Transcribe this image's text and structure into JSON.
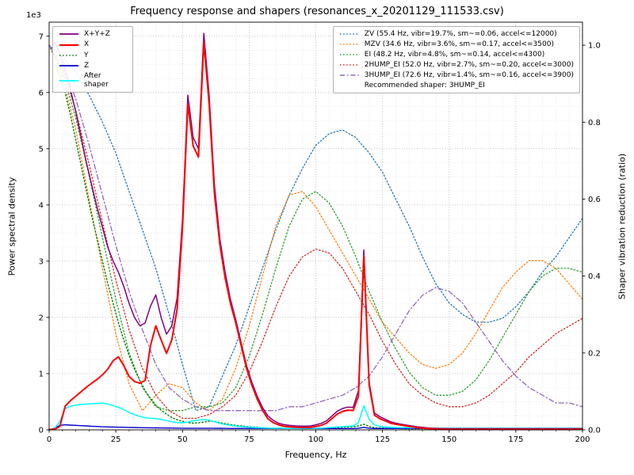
{
  "chart_data": {
    "type": "line",
    "title": "Frequency response and shapers (resonances_x_20201129_111533.csv)",
    "xlabel": "Frequency, Hz",
    "ylabel_left": "Power spectral density",
    "ylabel_right": "Shaper vibration reduction (ratio)",
    "offset_label": "1e3",
    "x_axis": {
      "min": 0,
      "max": 200,
      "major_ticks": [
        0,
        25,
        50,
        75,
        100,
        125,
        150,
        175,
        200
      ],
      "minor_step": 5
    },
    "y_left": {
      "min": 0,
      "max": 7250,
      "scale": 1000,
      "ticks": [
        0,
        1,
        2,
        3,
        4,
        5,
        6,
        7
      ],
      "minor_step": 250
    },
    "y_right": {
      "min": 0,
      "max": 1.06,
      "ticks": [
        0.0,
        0.2,
        0.4,
        0.6,
        0.8,
        1.0
      ]
    },
    "grid": true,
    "series": [
      {
        "name": "ZV",
        "axis": "right",
        "color": "#1f77b4",
        "style": "dotted",
        "width": 1.3,
        "x0": 0,
        "dx": 5,
        "values": [
          1.0,
          0.97,
          0.93,
          0.87,
          0.8,
          0.72,
          0.62,
          0.52,
          0.42,
          0.3,
          0.17,
          0.05,
          0.06,
          0.14,
          0.22,
          0.32,
          0.42,
          0.52,
          0.61,
          0.68,
          0.74,
          0.77,
          0.78,
          0.76,
          0.72,
          0.67,
          0.6,
          0.53,
          0.45,
          0.38,
          0.33,
          0.3,
          0.28,
          0.28,
          0.29,
          0.32,
          0.36,
          0.41,
          0.45,
          0.5,
          0.55
        ]
      },
      {
        "name": "MZV",
        "axis": "right",
        "color": "#ff7f0e",
        "style": "dotted",
        "width": 1.3,
        "x0": 0,
        "dx": 5,
        "values": [
          1.0,
          0.92,
          0.78,
          0.6,
          0.42,
          0.25,
          0.12,
          0.05,
          0.09,
          0.12,
          0.11,
          0.07,
          0.05,
          0.08,
          0.16,
          0.27,
          0.4,
          0.53,
          0.61,
          0.62,
          0.58,
          0.52,
          0.46,
          0.4,
          0.34,
          0.28,
          0.24,
          0.2,
          0.17,
          0.16,
          0.17,
          0.2,
          0.25,
          0.31,
          0.37,
          0.41,
          0.44,
          0.44,
          0.42,
          0.38,
          0.34
        ]
      },
      {
        "name": "EI",
        "axis": "right",
        "color": "#2ca02c",
        "style": "dotted",
        "width": 1.3,
        "x0": 0,
        "dx": 5,
        "values": [
          1.0,
          0.93,
          0.81,
          0.66,
          0.5,
          0.34,
          0.2,
          0.11,
          0.06,
          0.05,
          0.05,
          0.06,
          0.06,
          0.07,
          0.11,
          0.19,
          0.3,
          0.42,
          0.53,
          0.6,
          0.62,
          0.59,
          0.53,
          0.45,
          0.36,
          0.28,
          0.21,
          0.15,
          0.11,
          0.09,
          0.09,
          0.1,
          0.13,
          0.18,
          0.24,
          0.3,
          0.36,
          0.4,
          0.42,
          0.42,
          0.41
        ]
      },
      {
        "name": "2HUMP_EI",
        "axis": "right",
        "color": "#d62728",
        "style": "dotted",
        "width": 1.3,
        "x0": 0,
        "dx": 5,
        "values": [
          1.0,
          0.94,
          0.83,
          0.69,
          0.54,
          0.39,
          0.26,
          0.16,
          0.09,
          0.05,
          0.03,
          0.03,
          0.04,
          0.06,
          0.09,
          0.15,
          0.23,
          0.32,
          0.4,
          0.45,
          0.47,
          0.46,
          0.42,
          0.36,
          0.3,
          0.23,
          0.17,
          0.12,
          0.09,
          0.07,
          0.06,
          0.06,
          0.07,
          0.09,
          0.12,
          0.15,
          0.19,
          0.22,
          0.25,
          0.27,
          0.29
        ]
      },
      {
        "name": "3HUMP_EI",
        "axis": "right",
        "color": "#9467bd",
        "style": "dashdot",
        "width": 1.3,
        "x0": 0,
        "dx": 5,
        "values": [
          1.0,
          0.95,
          0.86,
          0.74,
          0.61,
          0.48,
          0.36,
          0.26,
          0.17,
          0.11,
          0.08,
          0.06,
          0.05,
          0.05,
          0.05,
          0.05,
          0.05,
          0.05,
          0.06,
          0.06,
          0.07,
          0.08,
          0.09,
          0.11,
          0.14,
          0.19,
          0.25,
          0.31,
          0.35,
          0.37,
          0.36,
          0.33,
          0.28,
          0.23,
          0.18,
          0.14,
          0.11,
          0.09,
          0.07,
          0.07,
          0.06
        ]
      },
      {
        "name": "Y",
        "axis": "left",
        "color": "#008000",
        "style": "dotted",
        "width": 1.4,
        "x0": 2,
        "dx": 2,
        "values": [
          6500,
          6300,
          6000,
          5600,
          5150,
          4700,
          4250,
          3800,
          3400,
          3000,
          2600,
          2250,
          1900,
          1600,
          1320,
          1080,
          880,
          700,
          560,
          440,
          350,
          280,
          220,
          180,
          150,
          130,
          120,
          125,
          140,
          155,
          150,
          130,
          110,
          95,
          80,
          70,
          60,
          52,
          46,
          40,
          35,
          30,
          28,
          26,
          24,
          22,
          22,
          22,
          24,
          26,
          30,
          34,
          38,
          42,
          46,
          50,
          55,
          70,
          100,
          60,
          40,
          34,
          30,
          26,
          24,
          22,
          20,
          20,
          18,
          18,
          16,
          16,
          14,
          14,
          12,
          12,
          12,
          12,
          12,
          12,
          12,
          12,
          12,
          12,
          12,
          12,
          12,
          12,
          12,
          12,
          12,
          12,
          12,
          12,
          12,
          12,
          12,
          12,
          12,
          12
        ]
      },
      {
        "name": "Z",
        "axis": "left",
        "color": "#0000cd",
        "style": "solid",
        "width": 1.4,
        "x0": 0,
        "dx": 2,
        "values": [
          0,
          30,
          80,
          90,
          85,
          80,
          75,
          70,
          65,
          60,
          55,
          52,
          50,
          48,
          46,
          44,
          42,
          40,
          38,
          36,
          35,
          34,
          33,
          32,
          31,
          30,
          30,
          30,
          30,
          30,
          30,
          29,
          28,
          27,
          26,
          25,
          25,
          25,
          25,
          25,
          25,
          24,
          24,
          24,
          24,
          24,
          24,
          24,
          24,
          24,
          24,
          24,
          24,
          24,
          24,
          24,
          24,
          24,
          30,
          45,
          30,
          24,
          24,
          24,
          24,
          24,
          24,
          24,
          24,
          24,
          24,
          24,
          24,
          24,
          24,
          24,
          24,
          24,
          24,
          24,
          24,
          24,
          24,
          24,
          24,
          24,
          24,
          24,
          24,
          24,
          24,
          24,
          24,
          24,
          24,
          24,
          24,
          24,
          24,
          24,
          24
        ]
      },
      {
        "name": "After shaper",
        "axis": "left",
        "color": "#00ffff",
        "style": "solid",
        "width": 1.5,
        "x0": 0,
        "dx": 2,
        "values": [
          0,
          20,
          150,
          380,
          420,
          440,
          450,
          460,
          465,
          470,
          475,
          460,
          430,
          400,
          360,
          310,
          270,
          240,
          215,
          205,
          200,
          185,
          165,
          145,
          130,
          125,
          140,
          160,
          175,
          185,
          170,
          145,
          115,
          95,
          80,
          68,
          58,
          50,
          44,
          40,
          36,
          33,
          30,
          29,
          28,
          27,
          27,
          27,
          28,
          29,
          30,
          33,
          37,
          43,
          50,
          58,
          65,
          70,
          130,
          430,
          190,
          90,
          60,
          50,
          45,
          42,
          40,
          38,
          36,
          35,
          34,
          33,
          32,
          31,
          30,
          30,
          30,
          30,
          30,
          30,
          30,
          30,
          30,
          30,
          30,
          30,
          30,
          30,
          30,
          30,
          30,
          30,
          30,
          30,
          30,
          30,
          30,
          30,
          30,
          30,
          30
        ]
      },
      {
        "name": "X+Y+Z",
        "axis": "left",
        "color": "#800080",
        "style": "solid",
        "width": 1.5,
        "x0": 2,
        "dx": 2,
        "values": [
          6900,
          6700,
          6400,
          6050,
          5650,
          5200,
          4750,
          4350,
          3950,
          3600,
          3250,
          3000,
          2800,
          2550,
          2250,
          2000,
          1850,
          1900,
          2200,
          2400,
          2000,
          1700,
          1850,
          2350,
          3750,
          5950,
          5200,
          5000,
          7050,
          5950,
          4350,
          3400,
          2800,
          2320,
          1960,
          1550,
          1150,
          850,
          600,
          400,
          250,
          170,
          120,
          95,
          80,
          72,
          68,
          66,
          70,
          90,
          115,
          160,
          245,
          330,
          380,
          405,
          400,
          700,
          3200,
          850,
          300,
          235,
          190,
          145,
          120,
          100,
          85,
          70,
          55,
          45,
          35,
          30,
          26,
          24,
          22,
          22,
          22,
          22,
          22,
          22,
          22,
          22,
          22,
          22,
          22,
          22,
          22,
          22,
          22,
          22,
          22,
          22,
          22,
          22,
          22,
          22,
          22,
          22,
          22,
          22
        ]
      },
      {
        "name": "X",
        "axis": "left",
        "color": "#ff0000",
        "style": "solid",
        "width": 2.0,
        "x0": 0,
        "dx": 2,
        "values": [
          5,
          10,
          60,
          420,
          520,
          600,
          680,
          760,
          830,
          900,
          980,
          1080,
          1230,
          1300,
          1140,
          950,
          860,
          830,
          880,
          1500,
          1850,
          1600,
          1360,
          1600,
          2150,
          3600,
          5800,
          5050,
          4850,
          6900,
          5800,
          4200,
          3300,
          2700,
          2250,
          1900,
          1500,
          1100,
          800,
          550,
          350,
          200,
          130,
          90,
          65,
          55,
          48,
          44,
          42,
          45,
          60,
          80,
          120,
          200,
          280,
          330,
          350,
          345,
          600,
          3100,
          800,
          260,
          200,
          160,
          120,
          100,
          85,
          70,
          55,
          40,
          30,
          22,
          18,
          15,
          12,
          10,
          10,
          10,
          10,
          10,
          10,
          10,
          10,
          10,
          10,
          10,
          10,
          10,
          10,
          10,
          10,
          10,
          10,
          10,
          10,
          10,
          10,
          10,
          10,
          10,
          10
        ]
      }
    ],
    "legend_left": {
      "items": [
        {
          "label": "X+Y+Z",
          "color": "#800080",
          "style": "solid",
          "width": 1.8
        },
        {
          "label": "X",
          "color": "#ff0000",
          "style": "solid",
          "width": 2.2
        },
        {
          "label": "Y",
          "color": "#008000",
          "style": "dotted",
          "width": 1.6
        },
        {
          "label": "Z",
          "color": "#0000cd",
          "style": "solid",
          "width": 1.8
        },
        {
          "label": "After shaper",
          "color": "#00ffff",
          "style": "solid",
          "width": 1.8
        }
      ]
    },
    "legend_right": {
      "items": [
        {
          "label": "ZV (55.4 Hz, vibr=19.7%, sm~=0.06, accel<=12000)",
          "color": "#1f77b4",
          "style": "dotted",
          "width": 1.6
        },
        {
          "label": "MZV (34.6 Hz, vibr=3.6%, sm~=0.17, accel<=3500)",
          "color": "#ff7f0e",
          "style": "dotted",
          "width": 1.6
        },
        {
          "label": "EI (48.2 Hz, vibr=4.8%, sm~=0.14, accel<=4300)",
          "color": "#2ca02c",
          "style": "dotted",
          "width": 1.6
        },
        {
          "label": "2HUMP_EI (52.0 Hz, vibr=2.7%, sm~=0.20, accel<=3000)",
          "color": "#d62728",
          "style": "dotted",
          "width": 1.6
        },
        {
          "label": "3HUMP_EI (72.6 Hz, vibr=1.4%, sm~=0.16, accel<=3900)",
          "color": "#9467bd",
          "style": "dashdot",
          "width": 1.6
        }
      ],
      "note": "Recommended shaper: 3HUMP_EI"
    }
  }
}
